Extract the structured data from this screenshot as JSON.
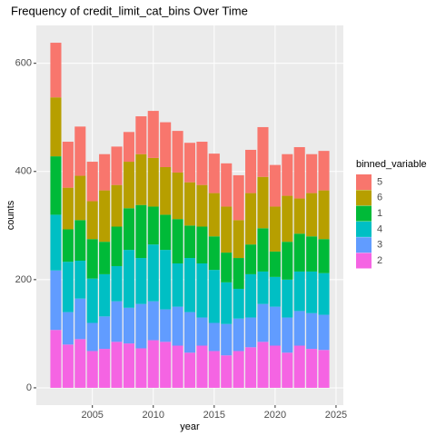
{
  "chart_data": {
    "type": "bar",
    "stacked": true,
    "title": "Frequency of credit_limit_cat_bins Over Time",
    "x_label": "year",
    "y_label": "counts",
    "legend_title": "binned_variable",
    "x": [
      2002,
      2003,
      2004,
      2005,
      2006,
      2007,
      2008,
      2009,
      2010,
      2011,
      2012,
      2013,
      2014,
      2015,
      2016,
      2017,
      2018,
      2019,
      2020,
      2021,
      2022,
      2023,
      2024
    ],
    "series": [
      {
        "name": "2",
        "color": "#F564E3",
        "values": [
          107,
          80,
          90,
          68,
          72,
          85,
          82,
          73,
          88,
          85,
          78,
          65,
          78,
          68,
          60,
          68,
          75,
          85,
          78,
          65,
          78,
          72,
          70
        ]
      },
      {
        "name": "3",
        "color": "#619CFF",
        "values": [
          110,
          60,
          75,
          52,
          60,
          75,
          66,
          82,
          72,
          60,
          72,
          75,
          52,
          52,
          58,
          60,
          55,
          70,
          72,
          65,
          64,
          66,
          65
        ]
      },
      {
        "name": "4",
        "color": "#00BFC4",
        "values": [
          103,
          93,
          70,
          82,
          78,
          65,
          107,
          85,
          105,
          110,
          80,
          100,
          100,
          98,
          77,
          55,
          80,
          60,
          55,
          70,
          73,
          77,
          77
        ]
      },
      {
        "name": "1",
        "color": "#00BA38",
        "values": [
          108,
          60,
          75,
          73,
          60,
          73,
          77,
          98,
          70,
          65,
          82,
          60,
          68,
          62,
          55,
          57,
          55,
          80,
          47,
          70,
          70,
          65,
          63
        ]
      },
      {
        "name": "6",
        "color": "#B79F00",
        "values": [
          109,
          77,
          82,
          70,
          95,
          77,
          86,
          94,
          90,
          88,
          86,
          80,
          77,
          80,
          85,
          70,
          95,
          95,
          83,
          85,
          65,
          80,
          90
        ]
      },
      {
        "name": "5",
        "color": "#F8766D",
        "values": [
          101,
          85,
          91,
          73,
          67,
          71,
          55,
          70,
          87,
          83,
          77,
          73,
          80,
          73,
          80,
          83,
          80,
          92,
          77,
          77,
          95,
          72,
          73
        ]
      }
    ],
    "xlim": [
      2000.4,
      2025.6
    ],
    "xticks": [
      2005,
      2010,
      2015,
      2020,
      2025
    ],
    "ylim": [
      -32,
      670
    ],
    "yticks": [
      0,
      200,
      400,
      600
    ],
    "grid": true,
    "legend": "right"
  }
}
